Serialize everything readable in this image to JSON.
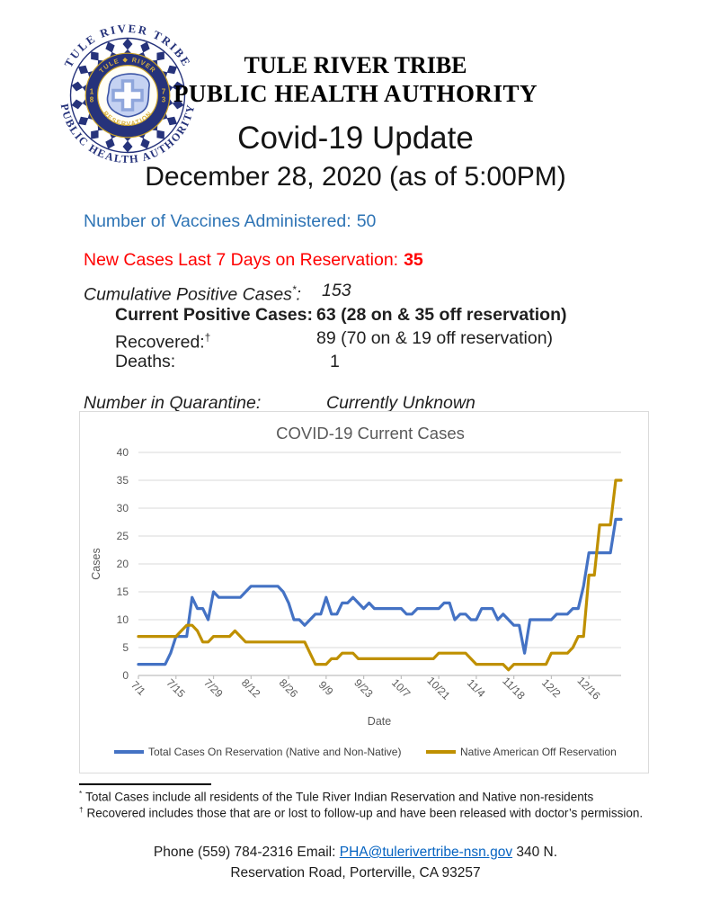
{
  "header": {
    "org_line1": "TULE RIVER TRIBE",
    "org_line2": "PUBLIC HEALTH AUTHORITY",
    "title": "Covid-19 Update",
    "date_line": "December 28, 2020 (as of 5:00PM)"
  },
  "logo": {
    "arc_top": "TULE RIVER TRIBE",
    "arc_bottom": "PUBLIC HEALTH AUTHORITY",
    "ring_top": "TULE ◆ RIVER",
    "ring_bottom": "RESERVATION",
    "year_left_top": "1",
    "year_left_bottom": "8",
    "year_right_top": "7",
    "year_right_bottom": "3",
    "navy": "#26337B",
    "gold": "#C9A227"
  },
  "stats": {
    "vaccines": {
      "label": "Number of Vaccines Administered:",
      "value": "50",
      "color": "#2E74B5"
    },
    "new_cases": {
      "label": "New Cases Last 7 Days on Reservation:",
      "value": "35",
      "color": "#FF0000"
    },
    "cumulative": {
      "label": "Cumulative Positive Cases",
      "sup": "*",
      "colon": ":",
      "value": "153"
    },
    "current": {
      "label": "Current Positive Cases:",
      "value": "63 (28 on & 35 off reservation)"
    },
    "recovered": {
      "label": "Recovered:",
      "sup": "†",
      "value": "89 (70 on & 19 off reservation)"
    },
    "deaths": {
      "label": "Deaths:",
      "value": "1"
    },
    "quarantine": {
      "label": "Number in Quarantine:",
      "value": "Currently Unknown"
    }
  },
  "chart_data": {
    "type": "line",
    "title": "COVID-19 Current Cases",
    "xlabel": "Date",
    "ylabel": "Cases",
    "ylim": [
      0,
      40
    ],
    "y_ticks": [
      0,
      5,
      10,
      15,
      20,
      25,
      30,
      35,
      40
    ],
    "grid": true,
    "legend_position": "bottom",
    "x_note": "values sampled every 2 days from 7/1/2020 through 12/28/2020",
    "x_tick_labels": [
      "7/1",
      "7/15",
      "7/29",
      "8/12",
      "8/26",
      "9/9",
      "9/23",
      "10/7",
      "10/21",
      "11/4",
      "11/18",
      "12/2",
      "12/16"
    ],
    "x_tick_indices": [
      0,
      7,
      14,
      21,
      28,
      35,
      42,
      49,
      56,
      63,
      70,
      77,
      84
    ],
    "series": [
      {
        "name": "Total Cases On Reservation (Native and Non-Native)",
        "color": "#4472C4",
        "values": [
          2,
          2,
          2,
          2,
          2,
          2,
          4,
          7,
          7,
          7,
          14,
          12,
          12,
          10,
          15,
          14,
          14,
          14,
          14,
          14,
          15,
          16,
          16,
          16,
          16,
          16,
          16,
          15,
          13,
          10,
          10,
          9,
          10,
          11,
          11,
          14,
          11,
          11,
          13,
          13,
          14,
          13,
          12,
          13,
          12,
          12,
          12,
          12,
          12,
          12,
          11,
          11,
          12,
          12,
          12,
          12,
          12,
          13,
          13,
          10,
          11,
          11,
          10,
          10,
          12,
          12,
          12,
          10,
          11,
          10,
          9,
          9,
          4,
          10,
          10,
          10,
          10,
          10,
          11,
          11,
          11,
          12,
          12,
          16,
          22,
          22,
          22,
          22,
          22,
          28,
          28
        ]
      },
      {
        "name": "Native American Off Reservation",
        "color": "#BF9000",
        "values": [
          7,
          7,
          7,
          7,
          7,
          7,
          7,
          7,
          8,
          9,
          9,
          8,
          6,
          6,
          7,
          7,
          7,
          7,
          8,
          7,
          6,
          6,
          6,
          6,
          6,
          6,
          6,
          6,
          6,
          6,
          6,
          6,
          4,
          2,
          2,
          2,
          3,
          3,
          4,
          4,
          4,
          3,
          3,
          3,
          3,
          3,
          3,
          3,
          3,
          3,
          3,
          3,
          3,
          3,
          3,
          3,
          4,
          4,
          4,
          4,
          4,
          4,
          3,
          2,
          2,
          2,
          2,
          2,
          2,
          1,
          2,
          2,
          2,
          2,
          2,
          2,
          2,
          4,
          4,
          4,
          4,
          5,
          7,
          7,
          18,
          18,
          27,
          27,
          27,
          35,
          35
        ]
      }
    ]
  },
  "footnotes": [
    {
      "marker": "*",
      "text": "Total Cases include all residents of the Tule River Indian Reservation and Native non-residents"
    },
    {
      "marker": "†",
      "text": "Recovered includes those that are or lost to follow-up and have been released with doctor’s permission."
    }
  ],
  "contact": {
    "line1_prefix": "Phone (559) 784-2316 Email: ",
    "email": "PHA@tulerivertribe-nsn.gov",
    "line1_suffix": " 340 N.",
    "line2": "Reservation Road, Porterville, CA 93257"
  }
}
